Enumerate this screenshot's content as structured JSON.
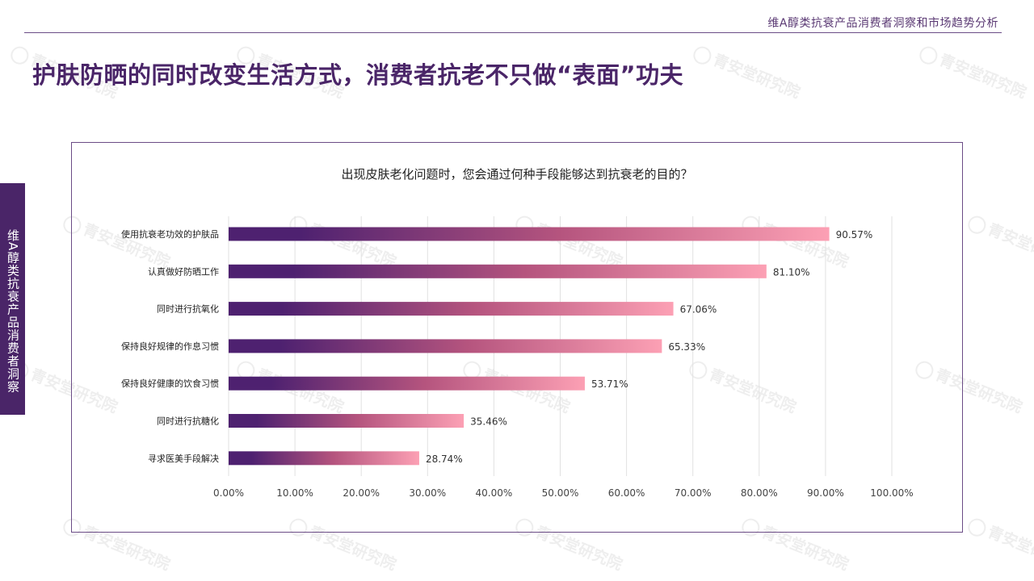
{
  "header": {
    "title": "维A醇类抗衰产品消费者洞察和市场趋势分析"
  },
  "page": {
    "heading": "护肤防晒的同时改变生活方式，消费者抗老不只做“表面”功夫"
  },
  "side_tab": {
    "label": "维A醇类抗衰产品消费者洞察"
  },
  "watermark": {
    "text": "青安堂研究院"
  },
  "colors": {
    "brand": "#4a2568",
    "bar_start": "#4e2170",
    "bar_end": "#fca0b4",
    "grid": "#e1e1e1"
  },
  "chart_data": {
    "type": "bar",
    "orientation": "horizontal",
    "title": "出现皮肤老化问题时，您会通过何种手段能够达到抗衰老的目的？",
    "categories": [
      "使用抗衰老功效的护肤品",
      "认真做好防晒工作",
      "同时进行抗氧化",
      "保持良好规律的作息习惯",
      "保持良好健康的饮食习惯",
      "同时进行抗糖化",
      "寻求医美手段解决"
    ],
    "values": [
      90.57,
      81.1,
      67.06,
      65.33,
      53.71,
      35.46,
      28.74
    ],
    "value_labels": [
      "90.57%",
      "81.10%",
      "67.06%",
      "65.33%",
      "53.71%",
      "35.46%",
      "28.74%"
    ],
    "x_ticks": [
      "0.00%",
      "10.00%",
      "20.00%",
      "30.00%",
      "40.00%",
      "50.00%",
      "60.00%",
      "70.00%",
      "80.00%",
      "90.00%",
      "100.00%"
    ],
    "xlim": [
      0,
      100
    ],
    "grid": true,
    "legend": "none"
  }
}
